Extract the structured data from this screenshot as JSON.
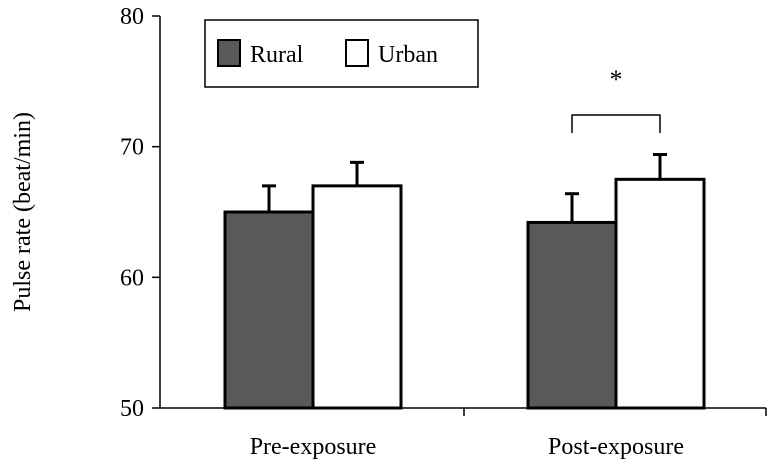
{
  "chart_data": {
    "type": "bar",
    "title": "",
    "xlabel": "",
    "ylabel": "Pulse rate (beat/min)",
    "ylim": [
      50,
      80
    ],
    "yticks": [
      50,
      60,
      70,
      80
    ],
    "categories": [
      "Pre-exposure",
      "Post-exposure"
    ],
    "series": [
      {
        "name": "Rural",
        "values": [
          65.0,
          64.2
        ],
        "errors": [
          2.0,
          2.2
        ],
        "color": "#595959"
      },
      {
        "name": "Urban",
        "values": [
          67.0,
          67.5
        ],
        "errors": [
          1.8,
          1.9
        ],
        "color": "#ffffff"
      }
    ],
    "legend_position": "top-left",
    "grid": false,
    "annotations": [
      {
        "text": "*",
        "category_index": 1,
        "type": "significance-bracket"
      }
    ]
  }
}
